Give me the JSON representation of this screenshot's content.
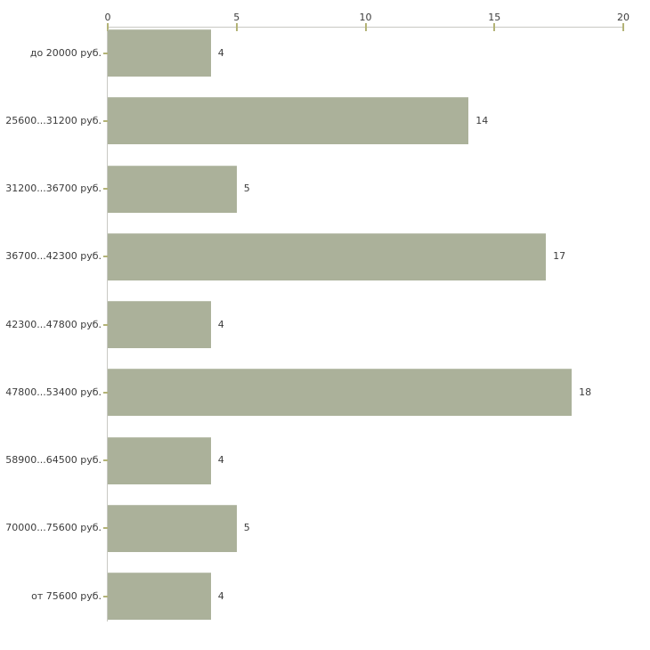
{
  "chart_data": {
    "type": "bar",
    "orientation": "horizontal",
    "title": "",
    "xlabel": "",
    "ylabel": "",
    "axis_position": "top",
    "grid": false,
    "legend": false,
    "categories": [
      "до 20000 руб.",
      "25600...31200 руб.",
      "31200...36700 руб.",
      "36700...42300 руб.",
      "42300...47800 руб.",
      "47800...53400 руб.",
      "58900...64500 руб.",
      "70000...75600 руб.",
      "от 75600 руб."
    ],
    "values": [
      4,
      14,
      5,
      17,
      4,
      18,
      4,
      5,
      4
    ],
    "x_ticks": [
      0,
      5,
      10,
      15,
      20
    ],
    "xlim": [
      0,
      20
    ],
    "colors": {
      "bar": "#abb19a",
      "axis_line": "#c9c9c3",
      "tick_mark": "#b3b377",
      "text": "#3b3b3b",
      "background": "#ffffff"
    }
  }
}
